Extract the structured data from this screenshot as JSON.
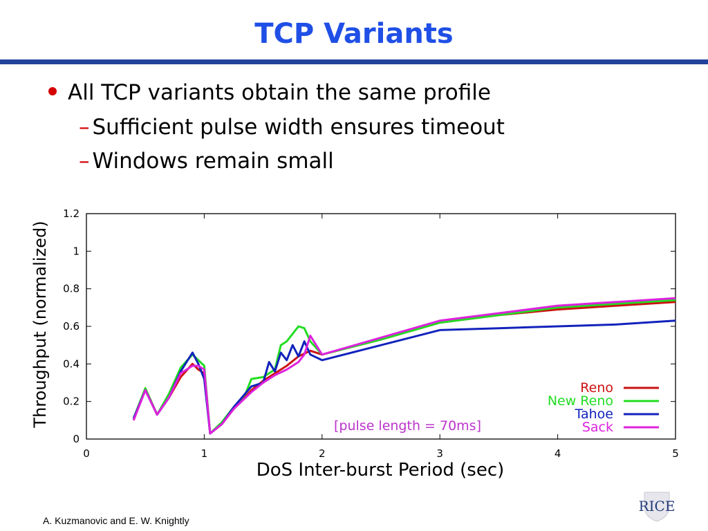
{
  "slide": {
    "title": "TCP Variants",
    "bullets": [
      {
        "text": "All TCP variants obtain the same profile",
        "level": 1
      },
      {
        "text": "Sufficient pulse width ensures timeout",
        "level": 2
      },
      {
        "text": "Windows remain small",
        "level": 2
      }
    ],
    "footer": "A. Kuzmanovic and E. W. Knightly",
    "logo_text": "RICE",
    "colors": {
      "title": "#1f4fe6",
      "rule": "#22419a",
      "bullet": "#d40000"
    }
  },
  "chart_data": {
    "type": "line",
    "title": "",
    "xlabel": "DoS Inter-burst Period (sec)",
    "ylabel": "Throughput (normalized)",
    "xlim": [
      0,
      5
    ],
    "ylim": [
      0,
      1.2
    ],
    "xticks": [
      "0",
      "1",
      "2",
      "3",
      "4",
      "5"
    ],
    "yticks": [
      "0",
      "0.2",
      "0.4",
      "0.6",
      "0.8",
      "1",
      "1.2"
    ],
    "annotation": "[pulse length = 70ms]",
    "grid": false,
    "legend_position": "bottom-right",
    "series": [
      {
        "name": "Reno",
        "color": "#cc1111",
        "x": [
          0.4,
          0.5,
          0.6,
          0.7,
          0.8,
          0.9,
          0.95,
          1.0,
          1.05,
          1.15,
          1.25,
          1.4,
          1.5,
          1.6,
          1.7,
          1.8,
          1.9,
          2.0,
          2.5,
          3.0,
          3.5,
          4.0,
          4.5,
          5.0
        ],
        "y": [
          0.1,
          0.27,
          0.13,
          0.22,
          0.33,
          0.4,
          0.37,
          0.35,
          0.03,
          0.08,
          0.16,
          0.26,
          0.31,
          0.35,
          0.39,
          0.44,
          0.47,
          0.45,
          0.53,
          0.62,
          0.66,
          0.69,
          0.71,
          0.73
        ]
      },
      {
        "name": "New Reno",
        "color": "#22dd22",
        "x": [
          0.4,
          0.5,
          0.6,
          0.7,
          0.8,
          0.9,
          0.95,
          1.0,
          1.05,
          1.15,
          1.25,
          1.35,
          1.4,
          1.5,
          1.6,
          1.65,
          1.7,
          1.75,
          1.8,
          1.85,
          1.9,
          2.0,
          2.5,
          3.0,
          3.5,
          4.0,
          4.5,
          5.0
        ],
        "y": [
          0.11,
          0.27,
          0.13,
          0.24,
          0.38,
          0.45,
          0.42,
          0.39,
          0.03,
          0.09,
          0.17,
          0.24,
          0.32,
          0.33,
          0.37,
          0.5,
          0.52,
          0.56,
          0.6,
          0.59,
          0.52,
          0.45,
          0.53,
          0.62,
          0.66,
          0.7,
          0.72,
          0.74
        ]
      },
      {
        "name": "Tahoe",
        "color": "#1122bb",
        "x": [
          0.4,
          0.5,
          0.6,
          0.7,
          0.8,
          0.9,
          0.95,
          1.0,
          1.05,
          1.15,
          1.25,
          1.4,
          1.5,
          1.55,
          1.6,
          1.65,
          1.7,
          1.75,
          1.8,
          1.85,
          1.9,
          2.0,
          2.5,
          3.0,
          3.5,
          4.0,
          4.5,
          5.0
        ],
        "y": [
          0.11,
          0.26,
          0.13,
          0.22,
          0.36,
          0.46,
          0.4,
          0.32,
          0.03,
          0.08,
          0.17,
          0.28,
          0.3,
          0.41,
          0.36,
          0.46,
          0.42,
          0.5,
          0.44,
          0.52,
          0.45,
          0.42,
          0.5,
          0.58,
          0.59,
          0.6,
          0.61,
          0.63
        ]
      },
      {
        "name": "Sack",
        "color": "#dd22dd",
        "x": [
          0.4,
          0.5,
          0.6,
          0.7,
          0.8,
          0.9,
          0.95,
          1.0,
          1.05,
          1.15,
          1.25,
          1.4,
          1.5,
          1.6,
          1.7,
          1.8,
          1.85,
          1.9,
          2.0,
          2.5,
          3.0,
          3.5,
          4.0,
          4.5,
          5.0
        ],
        "y": [
          0.1,
          0.26,
          0.13,
          0.22,
          0.35,
          0.39,
          0.39,
          0.37,
          0.03,
          0.08,
          0.16,
          0.25,
          0.3,
          0.34,
          0.37,
          0.41,
          0.45,
          0.55,
          0.45,
          0.54,
          0.63,
          0.67,
          0.71,
          0.73,
          0.75
        ]
      }
    ]
  }
}
